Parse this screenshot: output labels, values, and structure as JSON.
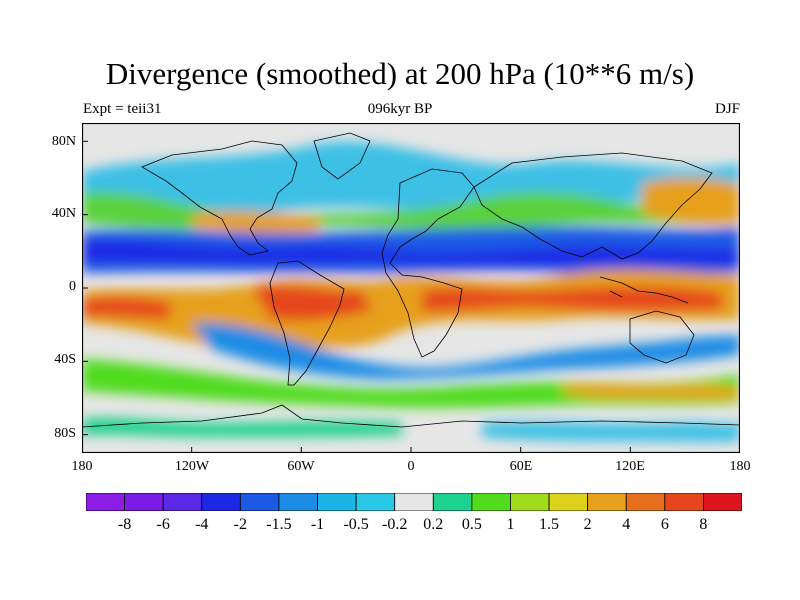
{
  "header": {
    "title": "Divergence (smoothed) at 200 hPa (10**6 m/s)",
    "left": "Expt = teii31",
    "center": "096kyr BP",
    "right": "DJF"
  },
  "chart_data": {
    "type": "heatmap",
    "title": "Divergence (smoothed) at 200 hPa (10**6 m/s)",
    "xlim": [
      -180,
      180
    ],
    "ylim": [
      -90,
      90
    ],
    "x_ticks": [
      {
        "value": -180,
        "label": "180"
      },
      {
        "value": -120,
        "label": "120W"
      },
      {
        "value": -60,
        "label": "60W"
      },
      {
        "value": 0,
        "label": "0"
      },
      {
        "value": 60,
        "label": "60E"
      },
      {
        "value": 120,
        "label": "120E"
      },
      {
        "value": 180,
        "label": "180"
      }
    ],
    "y_ticks": [
      {
        "value": 80,
        "label": "80N"
      },
      {
        "value": 40,
        "label": "40N"
      },
      {
        "value": 0,
        "label": "0"
      },
      {
        "value": -40,
        "label": "40S"
      },
      {
        "value": -80,
        "label": "80S"
      }
    ],
    "colorbar": {
      "levels": [
        "-8",
        "-6",
        "-4",
        "-2",
        "-1.5",
        "-1",
        "-0.5",
        "-0.2",
        "0.2",
        "0.5",
        "1",
        "1.5",
        "2",
        "4",
        "6",
        "8"
      ],
      "colors": [
        "#8c1ce6",
        "#7a1ce6",
        "#5a28e6",
        "#1c28e6",
        "#1c5ae6",
        "#1c8ce6",
        "#1cb4e6",
        "#28c8e6",
        "#e6e6e6",
        "#1cd28c",
        "#50dc1c",
        "#a0dc1c",
        "#dcd21c",
        "#e6a01c",
        "#e66e1c",
        "#e6461c",
        "#dc141c"
      ]
    },
    "features": [
      {
        "lon": -120,
        "lat": 18,
        "value": -5
      },
      {
        "lon": -60,
        "lat": 18,
        "value": -5
      },
      {
        "lon": 0,
        "lat": 20,
        "value": -4
      },
      {
        "lon": 60,
        "lat": 22,
        "value": -4
      },
      {
        "lon": 120,
        "lat": 20,
        "value": -3
      },
      {
        "lon": -55,
        "lat": -8,
        "value": 4
      },
      {
        "lon": 15,
        "lat": -10,
        "value": 4
      },
      {
        "lon": 70,
        "lat": -3,
        "value": 4
      },
      {
        "lon": 125,
        "lat": -2,
        "value": 5
      },
      {
        "lon": 165,
        "lat": -8,
        "value": 3
      },
      {
        "lon": -165,
        "lat": -12,
        "value": 3
      },
      {
        "lon": 155,
        "lat": 37,
        "value": 3
      },
      {
        "lon": -110,
        "lat": -28,
        "value": -2
      },
      {
        "lon": -20,
        "lat": -25,
        "value": -2
      },
      {
        "lon": 55,
        "lat": -28,
        "value": -2
      },
      {
        "lon": -80,
        "lat": 65,
        "value": -1
      },
      {
        "lon": -175,
        "lat": -75,
        "value": 0.5
      }
    ]
  }
}
